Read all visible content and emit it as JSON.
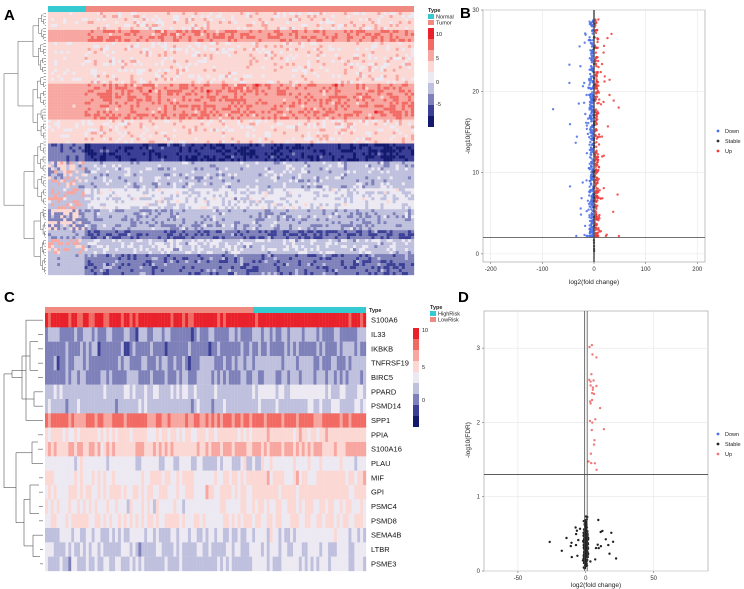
{
  "figure": {
    "panels": [
      "A",
      "B",
      "C",
      "D"
    ]
  },
  "chart_data": [
    {
      "panel": "A",
      "type": "heatmap",
      "legend_title": "Type",
      "legend_entries": [
        "Normal",
        "Tumor"
      ],
      "annotation_colors": {
        "Normal": "#35c9d2",
        "Tumor": "#f08a80"
      },
      "color_scale_ticks": [
        10,
        5,
        0,
        -5
      ],
      "color_scale_colors": [
        "#e8212b",
        "#f26a64",
        "#f7a6a0",
        "#fbd8d4",
        "#ece9f2",
        "#bfc0dd",
        "#7e80b9",
        "#3b3f96",
        "#131a6e"
      ]
    },
    {
      "panel": "B",
      "type": "scatter",
      "title": "",
      "xlabel": "log2(fold change)",
      "ylabel": "-log10(FDR)",
      "xlim": [
        -215,
        215
      ],
      "ylim": [
        -1,
        30
      ],
      "xticks": [
        -200,
        -100,
        0,
        100,
        200
      ],
      "yticks": [
        0,
        10,
        20,
        30
      ],
      "xtick_labels": [
        "-200",
        "-100",
        "0",
        "100",
        "200"
      ],
      "ytick_labels": [
        "0",
        "10",
        "20",
        "30"
      ],
      "hline": 2,
      "vlines": [
        -1,
        1
      ],
      "legend": [
        "Down",
        "Stable",
        "Up"
      ],
      "colors": {
        "Down": "#4a6ee8",
        "Stable": "#333333",
        "Up": "#ee3b3b"
      }
    },
    {
      "panel": "C",
      "type": "heatmap",
      "legend_title": "Type",
      "legend_entries": [
        "HighRisk",
        "LowRisk"
      ],
      "annotation_colors": {
        "HighRisk": "#35c9d2",
        "LowRisk": "#f08a80"
      },
      "color_scale_ticks": [
        10,
        5,
        0
      ],
      "genes": [
        "S100A6",
        "IL33",
        "IKBKB",
        "TNFRSF19",
        "BIRC5",
        "PPARD",
        "PSMD14",
        "SPP1",
        "PPIA",
        "S100A16",
        "PLAU",
        "MIF",
        "GPI",
        "PSMC4",
        "PSMD8",
        "SEMA4B",
        "LTBR",
        "PSME3"
      ],
      "gene_levels": [
        10.5,
        -1,
        -1.5,
        -1,
        -0.8,
        1,
        0.5,
        8,
        4,
        5.5,
        2,
        3.5,
        3.5,
        3,
        3.5,
        1.5,
        1.2,
        1
      ]
    },
    {
      "panel": "D",
      "type": "scatter",
      "title": "",
      "xlabel": "log2(fold change)",
      "ylabel": "-log10(FDR)",
      "xlim": [
        -75,
        90
      ],
      "ylim": [
        0,
        3.5
      ],
      "xticks": [
        -50,
        0,
        50
      ],
      "yticks": [
        0,
        1,
        2,
        3
      ],
      "xtick_labels": [
        "-50",
        "0",
        "50"
      ],
      "ytick_labels": [
        "0",
        "1",
        "2",
        "3"
      ],
      "hline": 1.3,
      "vlines": [
        -1,
        1
      ],
      "legend": [
        "Down",
        "Stable",
        "Up"
      ],
      "colors": {
        "Down": "#4a6ee8",
        "Stable": "#222222",
        "Up": "#f07a7a"
      }
    }
  ]
}
